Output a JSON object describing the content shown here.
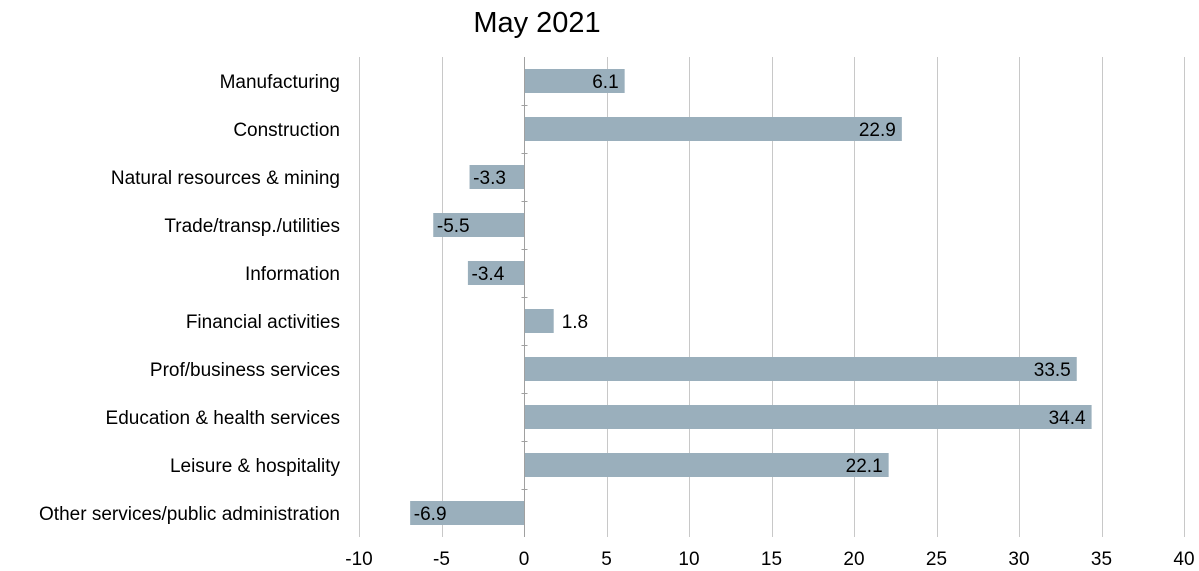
{
  "chart_data": {
    "type": "bar",
    "orientation": "horizontal",
    "title": "May 2021",
    "xlabel": "",
    "ylabel": "",
    "categories": [
      "Manufacturing",
      "Construction",
      "Natural resources & mining",
      "Trade/transp./utilities",
      "Information",
      "Financial activities",
      "Prof/business services",
      "Education & health services",
      "Leisure & hospitality",
      "Other services/public administration"
    ],
    "values": [
      6.1,
      22.9,
      -3.3,
      -5.5,
      -3.4,
      1.8,
      33.5,
      34.4,
      22.1,
      -6.9
    ],
    "data_labels": [
      "6.1",
      "22.9",
      "-3.3",
      "-5.5",
      "-3.4",
      "1.8",
      "33.5",
      "34.4",
      "22.1",
      "-6.9"
    ],
    "xlim": [
      -10,
      40
    ],
    "xticks": [
      -10,
      -5,
      0,
      5,
      10,
      15,
      20,
      25,
      30,
      35,
      40
    ],
    "xtick_labels": [
      "-10",
      "-5",
      "0",
      "5",
      "10",
      "15",
      "20",
      "25",
      "30",
      "35",
      "40"
    ],
    "grid": "vertical",
    "legend": "none",
    "bar_color": "#9aafbc",
    "grid_color": "#c8c8c8",
    "axis_color": "#a0a0a0",
    "text_color": "#000000"
  }
}
